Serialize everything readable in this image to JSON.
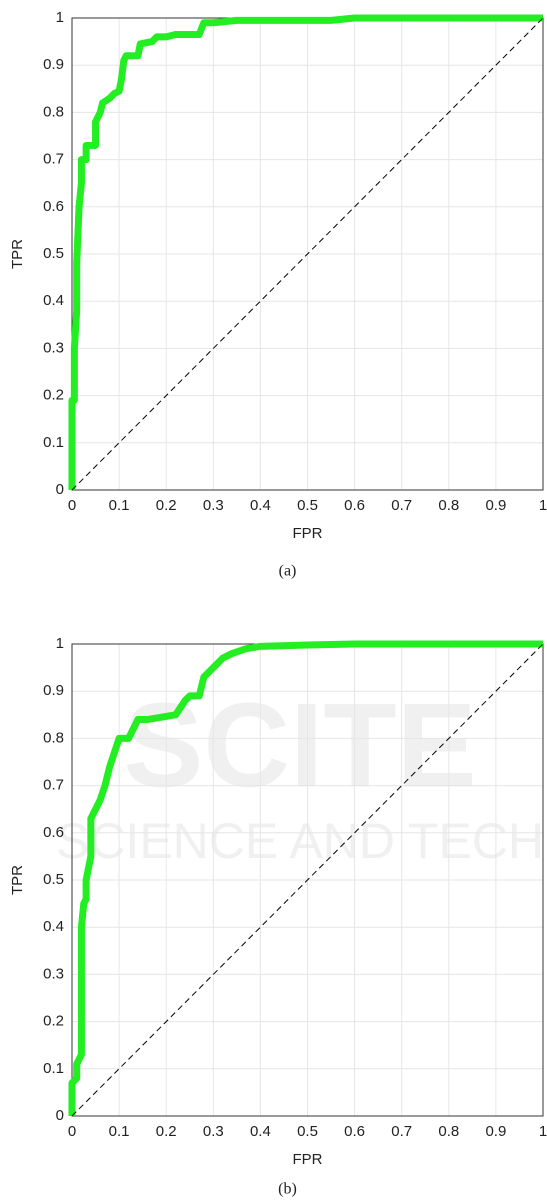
{
  "chart_data": [
    {
      "type": "line",
      "caption": "(a)",
      "xlabel": "FPR",
      "ylabel": "TPR",
      "xlim": [
        0,
        1
      ],
      "ylim": [
        0,
        1
      ],
      "xticks": [
        0,
        0.1,
        0.2,
        0.3,
        0.4,
        0.5,
        0.6,
        0.7,
        0.8,
        0.9,
        1
      ],
      "yticks": [
        0,
        0.1,
        0.2,
        0.3,
        0.4,
        0.5,
        0.6,
        0.7,
        0.8,
        0.9,
        1
      ],
      "grid": true,
      "series": [
        {
          "color": "#22ee22",
          "width": 7,
          "x": [
            0,
            0,
            0.005,
            0.005,
            0.01,
            0.01,
            0.015,
            0.02,
            0.02,
            0.03,
            0.03,
            0.05,
            0.05,
            0.06,
            0.065,
            0.08,
            0.09,
            0.1,
            0.105,
            0.11,
            0.115,
            0.14,
            0.145,
            0.17,
            0.18,
            0.2,
            0.22,
            0.27,
            0.28,
            0.3,
            0.35,
            0.55,
            0.6,
            1
          ],
          "values": [
            0,
            0.19,
            0.19,
            0.3,
            0.38,
            0.48,
            0.6,
            0.65,
            0.7,
            0.7,
            0.73,
            0.73,
            0.78,
            0.8,
            0.82,
            0.83,
            0.84,
            0.845,
            0.87,
            0.91,
            0.92,
            0.92,
            0.945,
            0.95,
            0.96,
            0.96,
            0.965,
            0.965,
            0.99,
            0.99,
            0.995,
            0.995,
            1,
            1
          ]
        },
        {
          "color": "#000000",
          "width": 1,
          "dashed": true,
          "x": [
            0,
            1
          ],
          "values": [
            0,
            1
          ]
        }
      ]
    },
    {
      "type": "line",
      "caption": "(b)",
      "xlabel": "FPR",
      "ylabel": "TPR",
      "xlim": [
        0,
        1
      ],
      "ylim": [
        0,
        1
      ],
      "xticks": [
        0,
        0.1,
        0.2,
        0.3,
        0.4,
        0.5,
        0.6,
        0.7,
        0.8,
        0.9,
        1
      ],
      "yticks": [
        0,
        0.1,
        0.2,
        0.3,
        0.4,
        0.5,
        0.6,
        0.7,
        0.8,
        0.9,
        1
      ],
      "grid": true,
      "series": [
        {
          "color": "#22ee22",
          "width": 7,
          "x": [
            0,
            0,
            0.01,
            0.01,
            0.02,
            0.02,
            0.025,
            0.03,
            0.03,
            0.04,
            0.04,
            0.05,
            0.06,
            0.07,
            0.08,
            0.09,
            0.1,
            0.12,
            0.13,
            0.14,
            0.16,
            0.22,
            0.24,
            0.25,
            0.27,
            0.28,
            0.3,
            0.32,
            0.34,
            0.37,
            0.4,
            0.5,
            0.6,
            1
          ],
          "values": [
            0,
            0.07,
            0.08,
            0.11,
            0.13,
            0.4,
            0.45,
            0.46,
            0.5,
            0.55,
            0.63,
            0.65,
            0.67,
            0.7,
            0.74,
            0.77,
            0.8,
            0.8,
            0.82,
            0.84,
            0.84,
            0.85,
            0.88,
            0.89,
            0.89,
            0.93,
            0.95,
            0.97,
            0.98,
            0.99,
            0.995,
            0.998,
            1,
            1
          ]
        },
        {
          "color": "#000000",
          "width": 1,
          "dashed": true,
          "x": [
            0,
            1
          ],
          "values": [
            0,
            1
          ]
        }
      ]
    }
  ],
  "watermark": [
    "SCITE",
    "SCIENCE AND TECH"
  ]
}
